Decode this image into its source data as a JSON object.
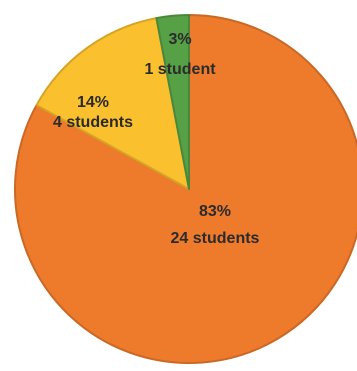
{
  "chart_data": {
    "type": "pie",
    "title": "",
    "slices": [
      {
        "value": 83,
        "percent_label": "83%",
        "count_label": "24 students",
        "color": "#ee7a2c"
      },
      {
        "value": 14,
        "percent_label": "14%",
        "count_label": "4 students",
        "color": "#fbc02d"
      },
      {
        "value": 3,
        "percent_label": "3%",
        "count_label": "1 student",
        "color": "#56a046"
      }
    ]
  }
}
